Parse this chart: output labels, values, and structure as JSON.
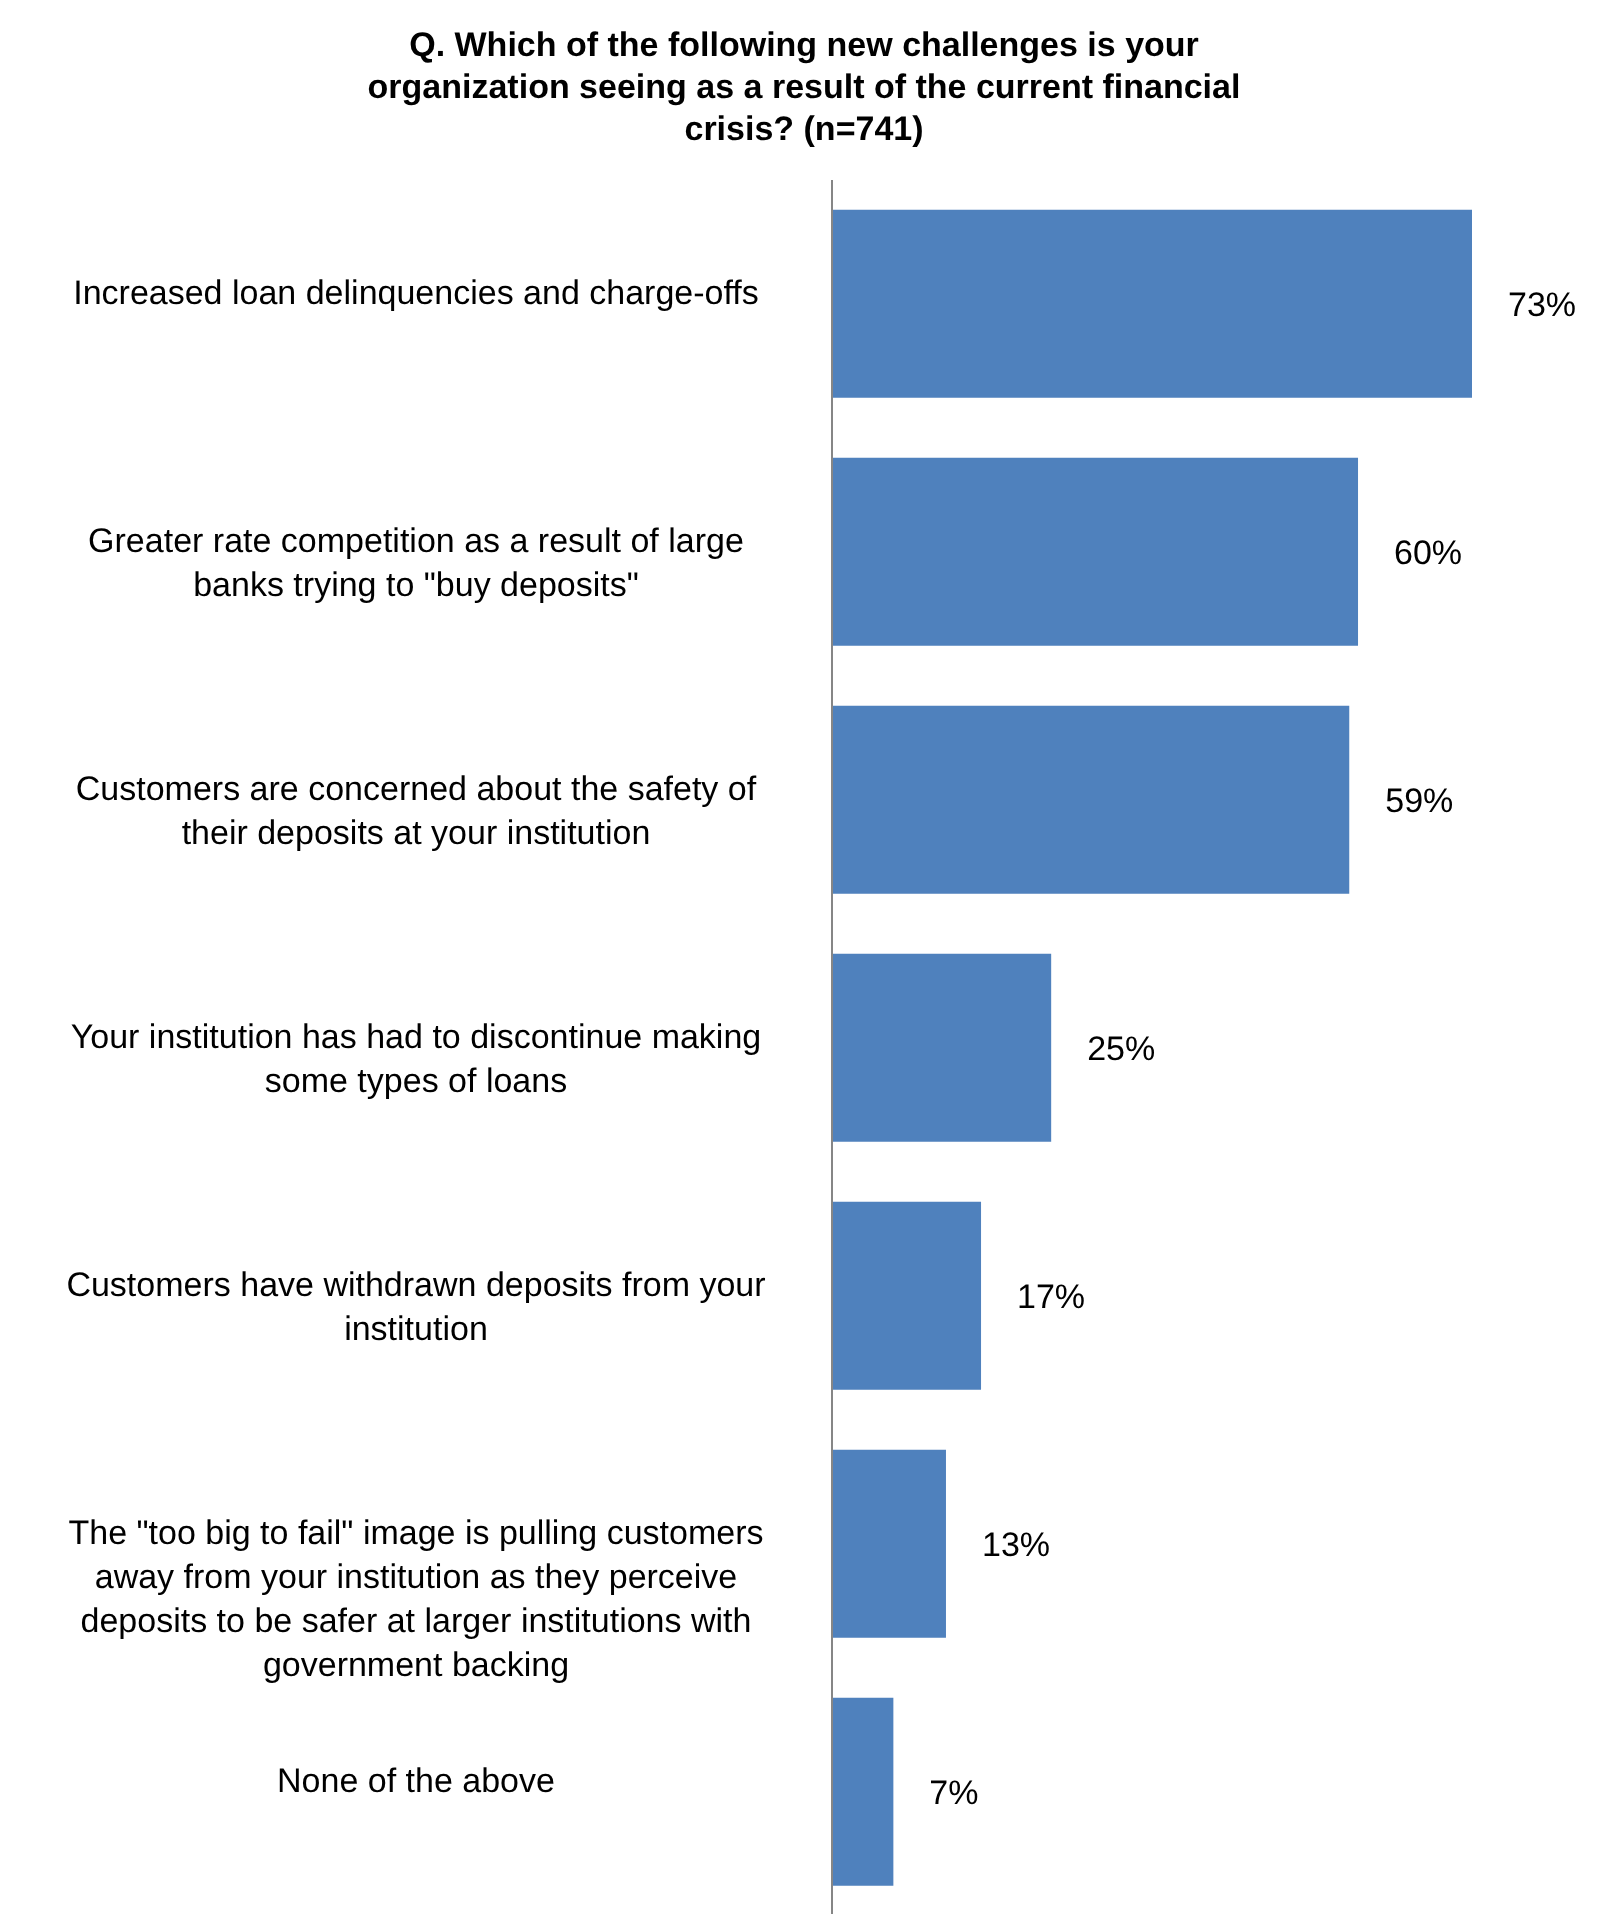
{
  "chart_data": {
    "type": "bar",
    "orientation": "horizontal",
    "title": "Q. Which of the following new challenges is your organization seeing as a result of the current financial crisis? (n=741)",
    "categories": [
      "Increased loan delinquencies and charge-offs",
      "Greater rate competition as a result of large banks trying to \"buy deposits\"",
      "Customers are concerned about the safety of their deposits at your institution",
      "Your institution has had to discontinue making some types of loans",
      "Customers have withdrawn deposits from your institution",
      "The \"too big to fail\" image is pulling customers away from your institution as they perceive deposits to be safer at larger institutions with government backing",
      "None of the above"
    ],
    "values": [
      73,
      60,
      59,
      25,
      17,
      13,
      7
    ],
    "value_labels": [
      "73%",
      "60%",
      "59%",
      "25%",
      "17%",
      "13%",
      "7%"
    ],
    "color": "#4f81bd",
    "grid": false,
    "legend": false
  }
}
